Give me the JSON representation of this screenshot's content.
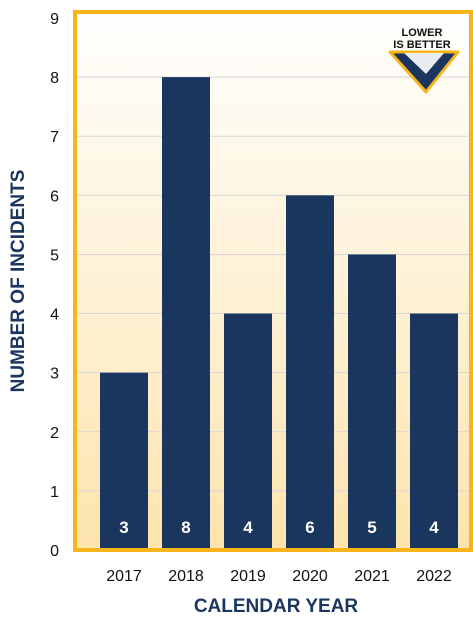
{
  "chart_data": {
    "type": "bar",
    "categories": [
      "2017",
      "2018",
      "2019",
      "2020",
      "2021",
      "2022"
    ],
    "values": [
      3,
      8,
      4,
      6,
      5,
      4
    ],
    "value_labels": [
      "3",
      "8",
      "4",
      "6",
      "5",
      "4"
    ],
    "ylim": [
      0,
      9
    ],
    "y_ticks": [
      "0",
      "1",
      "2",
      "3",
      "4",
      "5",
      "6",
      "7",
      "8",
      "9"
    ],
    "xlabel": "CALENDAR YEAR",
    "ylabel": "NUMBER OF INCIDENTS",
    "badge": {
      "line1": "LOWER",
      "line2": "IS BETTER"
    },
    "grid": true,
    "colors": {
      "bar": "#1a365f",
      "frame": "#f5b51b",
      "background_top": "#ffffff",
      "background_bottom": "#fde4ad",
      "grid": "#d7d7d7",
      "axis_title": "#1a365f",
      "checkmark": "#1a365f",
      "checkmark_outline": "#f5b51b"
    }
  }
}
